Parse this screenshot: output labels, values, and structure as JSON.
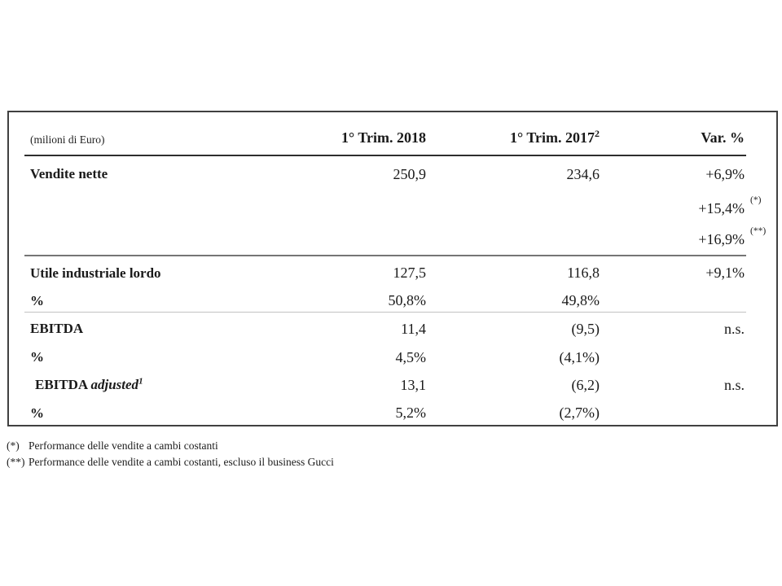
{
  "header": {
    "unit_label": "(milioni di Euro)",
    "col_2018": "1° Trim. 2018",
    "col_2017": "1° Trim. 2017",
    "col_2017_sup": "2",
    "col_var": "Var. %"
  },
  "table": {
    "rows": [
      {
        "label": "Vendite nette",
        "v2018": "250,9",
        "v2017": "234,6",
        "var": "+6,9%",
        "var_sup": ""
      },
      {
        "label": "",
        "v2018": "",
        "v2017": "",
        "var": "+15,4%",
        "var_sup": "(*)"
      },
      {
        "label": "",
        "v2018": "",
        "v2017": "",
        "var": "+16,9%",
        "var_sup": "(**)"
      },
      {
        "label": "Utile industriale lordo",
        "v2018": "127,5",
        "v2017": "116,8",
        "var": "+9,1%",
        "var_sup": ""
      },
      {
        "label": "%",
        "v2018": "50,8%",
        "v2017": "49,8%",
        "var": "",
        "var_sup": ""
      },
      {
        "label": "EBITDA",
        "v2018": "11,4",
        "v2017": "(9,5)",
        "var": "n.s.",
        "var_sup": ""
      },
      {
        "label": "%",
        "v2018": "4,5%",
        "v2017": "(4,1%)",
        "var": "",
        "var_sup": ""
      },
      {
        "label": "EBITDA ",
        "label_italic": "adjusted",
        "label_sup": "1",
        "v2018": "13,1",
        "v2017": "(6,2)",
        "var": "n.s.",
        "var_sup": ""
      },
      {
        "label": "%",
        "v2018": "5,2%",
        "v2017": "(2,7%)",
        "var": "",
        "var_sup": ""
      }
    ]
  },
  "footnotes": [
    {
      "marker": "(*)",
      "text": "Performance delle vendite a cambi costanti"
    },
    {
      "marker": "(**)",
      "text": "Performance delle vendite a cambi costanti, escluso il business Gucci"
    }
  ]
}
